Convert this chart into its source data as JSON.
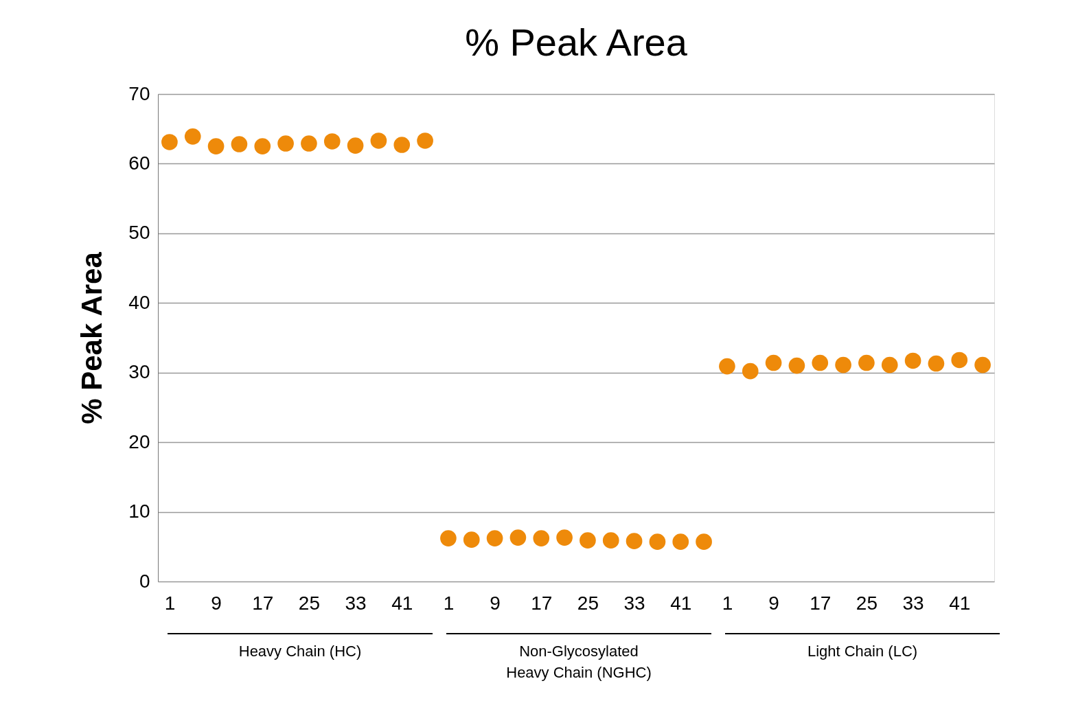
{
  "chart_data": {
    "type": "scatter",
    "title": "% Peak Area",
    "ylabel": "% Peak Area",
    "categories": [
      "1",
      null,
      "9",
      null,
      "17",
      null,
      "25",
      null,
      "33",
      null,
      "41",
      null,
      "1",
      null,
      "9",
      null,
      "17",
      null,
      "25",
      null,
      "33",
      null,
      "41",
      null,
      "1",
      null,
      "9",
      null,
      "17",
      null,
      "25",
      null,
      "33",
      null,
      "41",
      null
    ],
    "series": [
      {
        "color": "#ee8a0a",
        "values": [
          63.1,
          63.9,
          62.5,
          62.8,
          62.5,
          62.9,
          62.9,
          63.2,
          62.6,
          63.3,
          62.7,
          63.3,
          6.2,
          6.0,
          6.2,
          6.3,
          6.2,
          6.3,
          5.9,
          5.9,
          5.8,
          5.7,
          5.7,
          5.7,
          30.9,
          30.2,
          31.4,
          31.0,
          31.4,
          31.1,
          31.4,
          31.1,
          31.7,
          31.3,
          31.8,
          31.1
        ]
      }
    ],
    "ylim": [
      0,
      70
    ],
    "yticks": [
      0,
      10,
      20,
      30,
      40,
      50,
      60,
      70
    ],
    "grid": "y",
    "marker": "circle",
    "annotations": [
      "Heavy Chain (HC)",
      "Non-Glycosylated\nHeavy Chain (NGHC)",
      "Light Chain (LC)"
    ]
  }
}
